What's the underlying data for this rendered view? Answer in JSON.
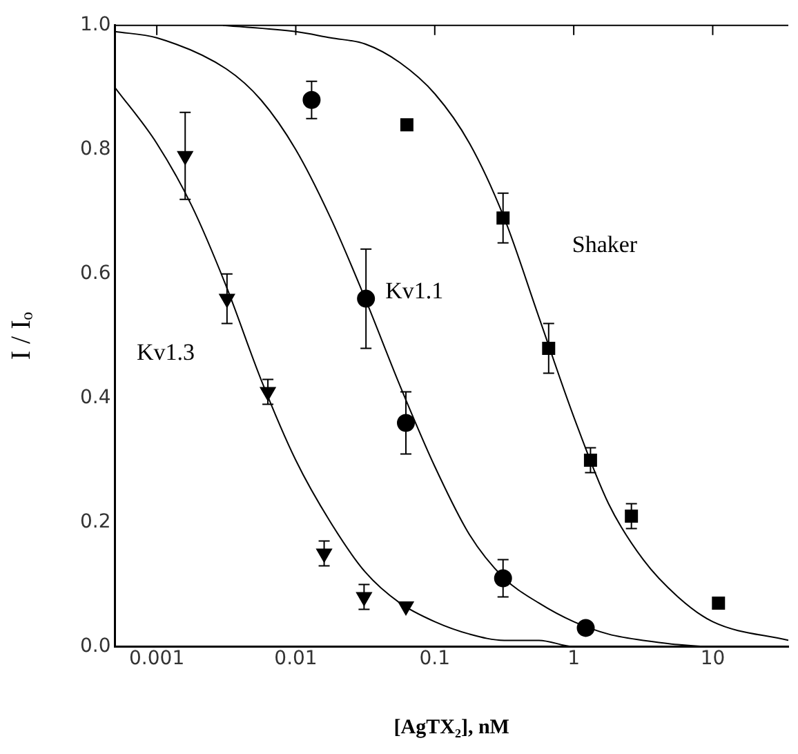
{
  "chart_data": {
    "type": "scatter",
    "xlabel": "[AgTX₂], nM",
    "ylabel": "I / Iₒ",
    "log": "x",
    "xlim": [
      0.0005,
      35
    ],
    "xticks": [
      0.001,
      0.01,
      0.1,
      1,
      10
    ],
    "ylim": [
      0,
      1
    ],
    "yticks": [
      {
        "value": 0,
        "label": "0.0"
      },
      {
        "value": 0.2,
        "label": "0.2"
      },
      {
        "value": 0.4,
        "label": "0.4"
      },
      {
        "value": 0.6,
        "label": "0.6"
      },
      {
        "value": 0.8,
        "label": "0.8"
      },
      {
        "value": 1,
        "label": "1.0"
      }
    ],
    "grid": false,
    "legend": false,
    "series": [
      {
        "name": "Kv1.3",
        "color": "#000000",
        "marker": "triangle",
        "x": [
          0.0016,
          0.0032,
          0.0063,
          0.016,
          0.031,
          0.062
        ],
        "values": [
          0.79,
          0.56,
          0.41,
          0.15,
          0.08,
          0.065
        ],
        "errors": [
          0.07,
          0.04,
          0.02,
          0.02,
          0.02,
          null
        ]
      },
      {
        "name": "Kv1.1",
        "color": "#000000",
        "marker": "circle",
        "x": [
          0.013,
          0.032,
          0.062,
          0.31,
          1.22
        ],
        "values": [
          0.88,
          0.56,
          0.36,
          0.11,
          0.03
        ],
        "errors": [
          0.03,
          0.08,
          0.05,
          0.03,
          null
        ]
      },
      {
        "name": "Shaker",
        "color": "#000000",
        "marker": "square",
        "x": [
          0.063,
          0.31,
          0.66,
          1.32,
          2.6,
          11
        ],
        "values": [
          0.84,
          0.69,
          0.48,
          0.3,
          0.21,
          0.07
        ],
        "errors": [
          null,
          0.04,
          0.04,
          0.02,
          0.02,
          null
        ]
      },
      {
        "type": "line",
        "color": "#000000",
        "marker": "none",
        "x": [
          0.0005,
          0.001,
          0.00178,
          0.00316,
          0.00562,
          0.01,
          0.0178,
          0.0316,
          0.0562,
          0.1,
          0.178,
          0.316,
          0.562,
          1,
          3.16,
          10,
          35
        ],
        "values": [
          0.9,
          0.81,
          0.71,
          0.58,
          0.43,
          0.3,
          0.2,
          0.12,
          0.07,
          0.04,
          0.02,
          0.01,
          0.01,
          0,
          0,
          0,
          0
        ]
      },
      {
        "type": "line",
        "color": "#000000",
        "marker": "none",
        "x": [
          0.0005,
          0.001,
          0.00316,
          0.00562,
          0.01,
          0.0178,
          0.0316,
          0.0562,
          0.1,
          0.178,
          0.316,
          0.562,
          1,
          1.78,
          3.16,
          10,
          35
        ],
        "values": [
          0.99,
          0.98,
          0.93,
          0.88,
          0.8,
          0.69,
          0.56,
          0.42,
          0.29,
          0.18,
          0.11,
          0.07,
          0.04,
          0.02,
          0.01,
          0,
          0
        ]
      },
      {
        "type": "line",
        "color": "#000000",
        "marker": "none",
        "x": [
          0.003,
          0.01,
          0.0178,
          0.0316,
          0.0562,
          0.1,
          0.178,
          0.316,
          0.562,
          1,
          1.78,
          3.16,
          5.62,
          10,
          35
        ],
        "values": [
          1,
          0.99,
          0.98,
          0.97,
          0.94,
          0.89,
          0.81,
          0.69,
          0.53,
          0.37,
          0.23,
          0.14,
          0.08,
          0.04,
          0.01
        ]
      }
    ]
  }
}
